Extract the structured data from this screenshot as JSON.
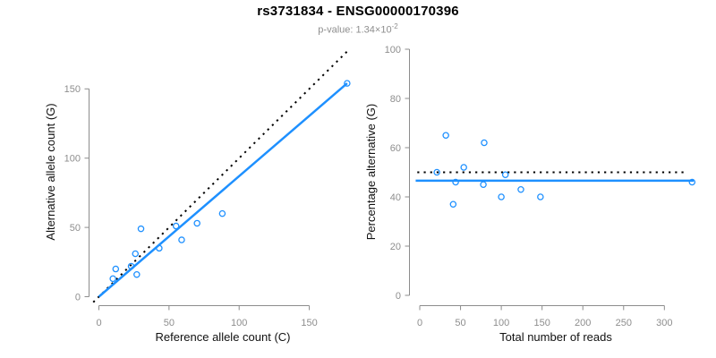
{
  "header": {
    "title": "rs3731834 - ENSG00000170396",
    "subtitle_prefix": "p-value: 1.34×10",
    "subtitle_exponent": "-2"
  },
  "colors": {
    "accent_blue": "#1E90FF",
    "axis_gray": "#8c8c8c",
    "tick_text_gray": "#8e8e8e",
    "line_black": "#000000"
  },
  "chart_data": [
    {
      "type": "scatter",
      "xlabel": "Reference allele count (C)",
      "ylabel": "Alternative allele count (G)",
      "xticks": [
        0,
        50,
        100,
        150
      ],
      "yticks": [
        0,
        50,
        100,
        150
      ],
      "xlim": [
        0,
        185
      ],
      "ylim": [
        0,
        180
      ],
      "grid": false,
      "points": [
        [
          10,
          13
        ],
        [
          12,
          20
        ],
        [
          23,
          22
        ],
        [
          27,
          16
        ],
        [
          26,
          31
        ],
        [
          30,
          49
        ],
        [
          43,
          35
        ],
        [
          55,
          51
        ],
        [
          59,
          41
        ],
        [
          70,
          53
        ],
        [
          88,
          60
        ],
        [
          177,
          154
        ]
      ],
      "lines": [
        {
          "name": "identity-line",
          "style": "dotted",
          "color": "#000000",
          "x1": -4,
          "y1": -4,
          "x2": 178,
          "y2": 178
        },
        {
          "name": "regression-line",
          "style": "solid",
          "color": "#1E90FF",
          "x1": 0,
          "y1": 0,
          "x2": 177,
          "y2": 154
        }
      ]
    },
    {
      "type": "scatter",
      "xlabel": "Total number of reads",
      "ylabel": "Percentage alternative (G)",
      "xticks": [
        0,
        50,
        100,
        150,
        200,
        250,
        300
      ],
      "yticks": [
        0,
        20,
        40,
        60,
        80,
        100
      ],
      "xlim": [
        0,
        345
      ],
      "ylim": [
        0,
        100
      ],
      "grid": false,
      "points": [
        [
          21,
          50
        ],
        [
          32,
          65
        ],
        [
          41,
          37
        ],
        [
          44,
          46
        ],
        [
          54,
          52
        ],
        [
          78,
          45
        ],
        [
          79,
          62
        ],
        [
          100,
          40
        ],
        [
          105,
          49
        ],
        [
          124,
          43
        ],
        [
          148,
          40
        ],
        [
          334,
          46
        ]
      ],
      "lines": [
        {
          "name": "expected-50pct-line",
          "style": "dotted",
          "color": "#000000",
          "x1": -3,
          "y1": 50,
          "x2": 328,
          "y2": 50
        },
        {
          "name": "mean-pct-line",
          "style": "solid",
          "color": "#1E90FF",
          "x1": -5,
          "y1": 46.6,
          "x2": 336,
          "y2": 46.6
        }
      ]
    }
  ]
}
